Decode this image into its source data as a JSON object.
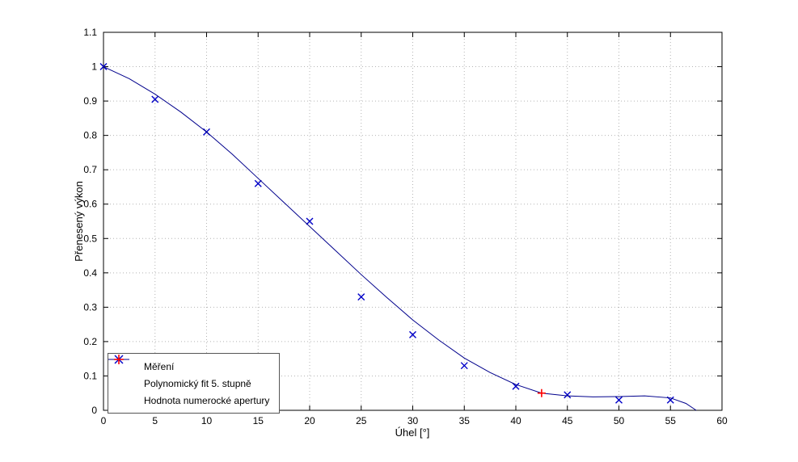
{
  "figure": {
    "background": "#ffffff",
    "plot_border_color": "#000000",
    "grid_color": "#b4b4b4"
  },
  "chart_data": {
    "type": "line",
    "title": "",
    "xlabel": "Úhel [°]",
    "ylabel": "Přenesený výkon",
    "xlim": [
      0,
      60
    ],
    "ylim": [
      0,
      1.1
    ],
    "xticks": [
      0,
      5,
      10,
      15,
      20,
      25,
      30,
      35,
      40,
      45,
      50,
      55,
      60
    ],
    "yticks": [
      0,
      0.1,
      0.2,
      0.3,
      0.4,
      0.5,
      0.6,
      0.7,
      0.8,
      0.9,
      1,
      1.1
    ],
    "grid": true,
    "legend_position": "lower-left",
    "series": [
      {
        "name": "Měření",
        "type": "scatter",
        "marker": "x",
        "color": "#0000c8",
        "x": [
          0,
          5,
          10,
          15,
          20,
          25,
          30,
          35,
          40,
          45,
          50,
          55
        ],
        "y": [
          1.0,
          0.905,
          0.81,
          0.66,
          0.55,
          0.33,
          0.22,
          0.13,
          0.07,
          0.045,
          0.03,
          0.03
        ]
      },
      {
        "name": "Polynomický fit 5. stupně",
        "type": "line",
        "color": "#00008c",
        "x": [
          0,
          2.5,
          5,
          7.5,
          10,
          12.5,
          15,
          17.5,
          20,
          22.5,
          25,
          27.5,
          30,
          32.5,
          35,
          37.5,
          40,
          42.5,
          45,
          47.5,
          50,
          52.5,
          55,
          56.5,
          57.5
        ],
        "y": [
          1.0,
          0.965,
          0.92,
          0.868,
          0.81,
          0.745,
          0.675,
          0.605,
          0.535,
          0.465,
          0.395,
          0.328,
          0.263,
          0.205,
          0.152,
          0.11,
          0.075,
          0.05,
          0.042,
          0.039,
          0.04,
          0.042,
          0.036,
          0.02,
          0.0
        ]
      },
      {
        "name": "Hodnota numerocké apertury",
        "type": "scatter",
        "marker": "+",
        "color": "#ff0000",
        "x": [
          42.5
        ],
        "y": [
          0.05
        ]
      }
    ]
  }
}
